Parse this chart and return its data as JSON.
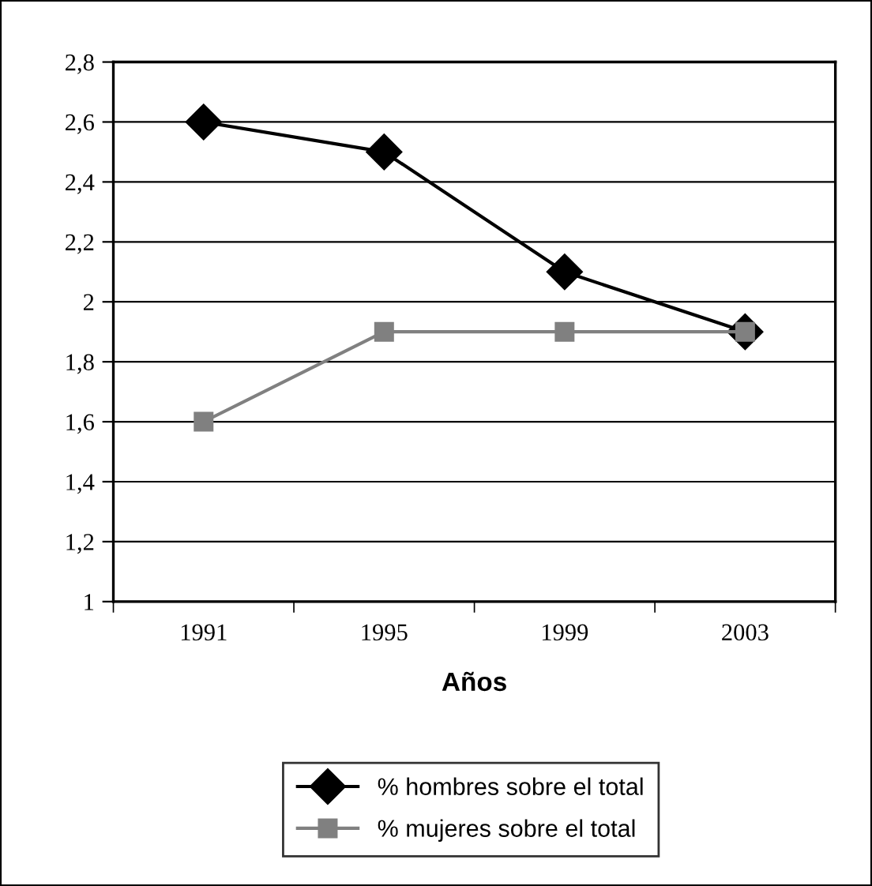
{
  "chart_data": {
    "type": "line",
    "xlabel": "Años",
    "categories": [
      "1991",
      "1995",
      "1999",
      "2003"
    ],
    "series": [
      {
        "name": "% hombres sobre el total",
        "color": "#000000",
        "marker": "diamond",
        "values": [
          2.6,
          2.5,
          2.1,
          1.9
        ]
      },
      {
        "name": "% mujeres sobre el total",
        "color": "#808080",
        "marker": "square",
        "values": [
          1.6,
          1.9,
          1.9,
          1.9
        ]
      }
    ],
    "ylim": [
      1,
      2.8
    ],
    "yticks": [
      1,
      {
        "value": 1.2,
        "label": "1,2"
      },
      {
        "value": 1.4,
        "label": "1,4"
      },
      {
        "value": 1.6,
        "label": "1,6"
      },
      {
        "value": 1.8,
        "label": "1,8"
      },
      2,
      {
        "value": 2.2,
        "label": "2,2"
      },
      {
        "value": 2.4,
        "label": "2,4"
      },
      {
        "value": 2.6,
        "label": "2,6"
      },
      {
        "value": 2.8,
        "label": "2,8"
      }
    ],
    "grid": "y",
    "legend": "bottom",
    "line_style": "solid"
  }
}
